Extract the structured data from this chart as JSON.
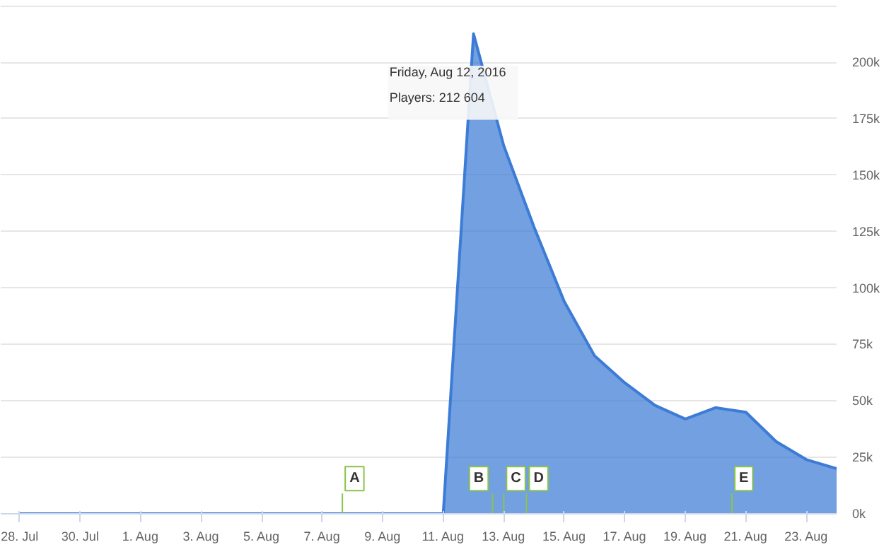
{
  "chart_data": {
    "type": "area",
    "x": [
      "2016-07-28",
      "2016-07-29",
      "2016-07-30",
      "2016-07-31",
      "2016-08-01",
      "2016-08-02",
      "2016-08-03",
      "2016-08-04",
      "2016-08-05",
      "2016-08-06",
      "2016-08-07",
      "2016-08-08",
      "2016-08-09",
      "2016-08-10",
      "2016-08-11",
      "2016-08-12",
      "2016-08-13",
      "2016-08-14",
      "2016-08-15",
      "2016-08-16",
      "2016-08-17",
      "2016-08-18",
      "2016-08-19",
      "2016-08-20",
      "2016-08-21",
      "2016-08-22",
      "2016-08-23",
      "2016-08-24"
    ],
    "series": [
      {
        "color": "#3c7bd6",
        "values": [
          0,
          0,
          0,
          0,
          0,
          0,
          0,
          0,
          0,
          0,
          0,
          0,
          0,
          0,
          0,
          212604,
          163000,
          127000,
          94000,
          70000,
          58000,
          48000,
          42000,
          47000,
          45000,
          32000,
          24000,
          20000
        ]
      }
    ],
    "xlim": [
      "2016-07-27T09:00",
      "2016-08-24"
    ],
    "xticks": [
      {
        "value": "2016-07-28",
        "label": "28. Jul"
      },
      {
        "value": "2016-07-30",
        "label": "30. Jul"
      },
      {
        "value": "2016-08-01",
        "label": "1. Aug"
      },
      {
        "value": "2016-08-03",
        "label": "3. Aug"
      },
      {
        "value": "2016-08-05",
        "label": "5. Aug"
      },
      {
        "value": "2016-08-07",
        "label": "7. Aug"
      },
      {
        "value": "2016-08-09",
        "label": "9. Aug"
      },
      {
        "value": "2016-08-11",
        "label": "11. Aug"
      },
      {
        "value": "2016-08-13",
        "label": "13. Aug"
      },
      {
        "value": "2016-08-15",
        "label": "15. Aug"
      },
      {
        "value": "2016-08-17",
        "label": "17. Aug"
      },
      {
        "value": "2016-08-19",
        "label": "19. Aug"
      },
      {
        "value": "2016-08-21",
        "label": "21. Aug"
      },
      {
        "value": "2016-08-23",
        "label": "23. Aug"
      }
    ],
    "ylim": [
      0,
      226000
    ],
    "yticks": [
      {
        "value": 0,
        "label": "0k"
      },
      {
        "value": 25000,
        "label": "25k"
      },
      {
        "value": 50000,
        "label": "50k"
      },
      {
        "value": 75000,
        "label": "75k"
      },
      {
        "value": 100000,
        "label": "100k"
      },
      {
        "value": 125000,
        "label": "125k"
      },
      {
        "value": 150000,
        "label": "150k"
      },
      {
        "value": 175000,
        "label": "175k"
      },
      {
        "value": 200000,
        "label": "200k"
      },
      {
        "value": 225000,
        "label": null
      }
    ],
    "grid": "y",
    "annotations": [
      "Friday, Aug 12, 2016",
      "Players: 212 604",
      {
        "text": "A",
        "x": "2016-08-07T16:00",
        "y": 0
      },
      {
        "text": "B",
        "x": "2016-08-12T15:00",
        "y": 0
      },
      {
        "text": "C",
        "x": "2016-08-13",
        "y": 0
      },
      {
        "text": "D",
        "x": "2016-08-13T18:00",
        "y": 0
      },
      {
        "text": "E",
        "x": "2016-08-20T13:00",
        "y": 0
      }
    ]
  }
}
